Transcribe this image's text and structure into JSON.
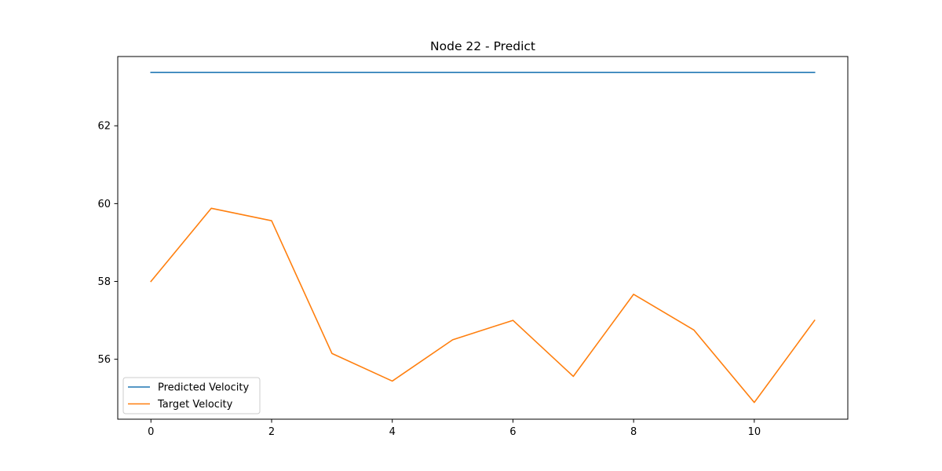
{
  "chart_data": {
    "type": "line",
    "title": "Node 22 - Predict",
    "xlabel": "",
    "ylabel": "",
    "x": [
      0,
      1,
      2,
      3,
      4,
      5,
      6,
      7,
      8,
      9,
      10,
      11
    ],
    "xlim": [
      -0.55,
      11.55
    ],
    "ylim": [
      54.46,
      63.78
    ],
    "xticks": [
      0,
      2,
      4,
      6,
      8,
      10
    ],
    "yticks": [
      56,
      58,
      60,
      62
    ],
    "grid": false,
    "legend_position": "lower-left",
    "series": [
      {
        "name": "Predicted Velocity",
        "color": "#1f77b4",
        "values": [
          63.37,
          63.37,
          63.37,
          63.37,
          63.37,
          63.37,
          63.37,
          63.37,
          63.37,
          63.37,
          63.37,
          63.37
        ]
      },
      {
        "name": "Target Velocity",
        "color": "#ff7f0e",
        "values": [
          58.0,
          59.88,
          59.56,
          56.15,
          55.44,
          56.5,
          57.0,
          55.56,
          57.67,
          56.75,
          54.89,
          57.0
        ]
      }
    ]
  }
}
